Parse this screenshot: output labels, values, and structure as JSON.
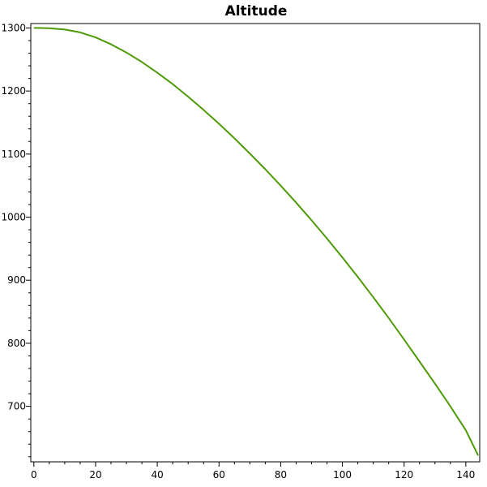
{
  "chart_data": {
    "type": "line",
    "title": "Altitude",
    "xlabel": "",
    "ylabel": "",
    "xlim": [
      -1,
      144.5
    ],
    "ylim": [
      612,
      1307
    ],
    "x_ticks": [
      0,
      20,
      40,
      60,
      80,
      100,
      120,
      140
    ],
    "x_tick_labels": [
      "0",
      "20",
      "40",
      "60",
      "80",
      "100",
      "120",
      "140"
    ],
    "x_minor_step": 5,
    "y_ticks": [
      700,
      800,
      900,
      1000,
      1100,
      1200,
      1300
    ],
    "y_tick_labels": [
      "700",
      "800",
      "900",
      "1000",
      "1100",
      "1200",
      "1300"
    ],
    "y_minor_step": 20,
    "grid": false,
    "legend": "none",
    "series": [
      {
        "color": "#4e9a06",
        "x": [
          0,
          5,
          10,
          15,
          20,
          25,
          30,
          35,
          40,
          45,
          50,
          55,
          60,
          65,
          70,
          75,
          80,
          85,
          90,
          95,
          100,
          105,
          110,
          115,
          120,
          125,
          130,
          135,
          140,
          144
        ],
        "y": [
          1300,
          1299.5,
          1297.5,
          1293,
          1285,
          1274,
          1261,
          1246,
          1229,
          1211,
          1191,
          1170,
          1148,
          1125,
          1101,
          1076,
          1050,
          1023,
          995,
          966,
          936,
          905,
          873,
          840,
          806,
          771,
          736,
          700,
          662,
          622
        ]
      }
    ]
  }
}
